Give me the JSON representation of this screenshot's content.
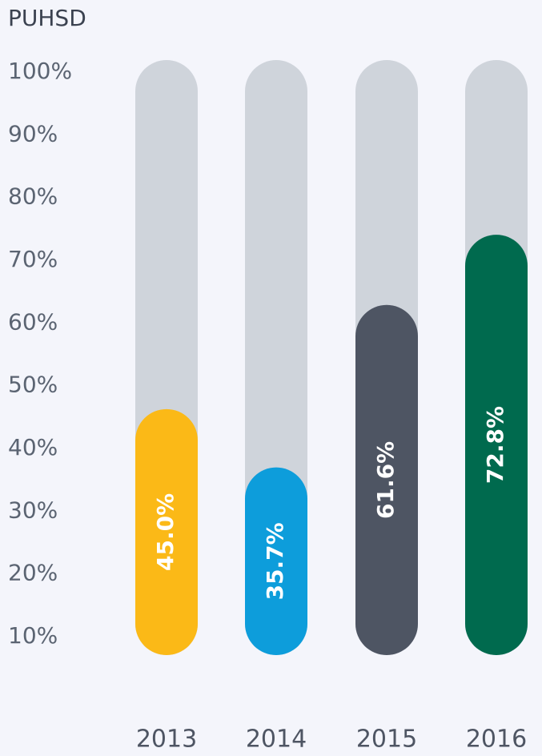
{
  "chart_data": {
    "type": "bar",
    "title": "PUHSD",
    "categories": [
      "2013",
      "2014",
      "2015",
      "2016"
    ],
    "values": [
      45.0,
      35.7,
      61.6,
      72.8
    ],
    "value_labels": [
      "45.0%",
      "35.7%",
      "61.6%",
      "72.8%"
    ],
    "colors": [
      "#fbb917",
      "#0d9ddb",
      "#4e5563",
      "#006a4e"
    ],
    "track_color": "#cfd4db",
    "ylim": [
      10,
      100
    ],
    "yticks": [
      {
        "value": 10,
        "label": "10%"
      },
      {
        "value": 20,
        "label": "20%"
      },
      {
        "value": 30,
        "label": "30%"
      },
      {
        "value": 40,
        "label": "40%"
      },
      {
        "value": 50,
        "label": "50%"
      },
      {
        "value": 60,
        "label": "60%"
      },
      {
        "value": 70,
        "label": "70%"
      },
      {
        "value": 80,
        "label": "80%"
      },
      {
        "value": 90,
        "label": "90%"
      },
      {
        "value": 100,
        "label": "100%"
      }
    ],
    "grid": false
  }
}
